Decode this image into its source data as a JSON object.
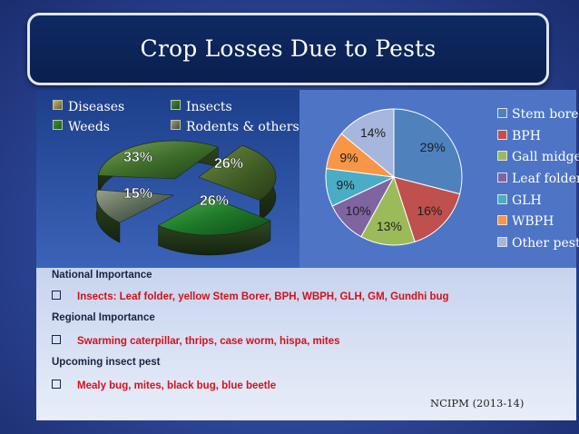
{
  "slide": {
    "title": "Crop Losses Due to Pests"
  },
  "left_legend": [
    {
      "label": "Diseases"
    },
    {
      "label": "Insects"
    },
    {
      "label": "Weeds"
    },
    {
      "label": "Rodents & others"
    }
  ],
  "chart_data": [
    {
      "type": "pie",
      "title": "",
      "style": "3d photo-textured pie",
      "slices": [
        {
          "label": "Diseases",
          "value": 26,
          "value_label": "26%"
        },
        {
          "label": "Insects",
          "value": 26,
          "value_label": "26%"
        },
        {
          "label": "Weeds",
          "value": 33,
          "value_label": "33%"
        },
        {
          "label": "Rodents & others",
          "value": 15,
          "value_label": "15%"
        }
      ],
      "legend_position": "top"
    },
    {
      "type": "pie",
      "title": "",
      "slices": [
        {
          "label": "Stem bore",
          "value": 29,
          "value_label": "29%",
          "color": "#4f81bd"
        },
        {
          "label": "BPH",
          "value": 16,
          "value_label": "16%",
          "color": "#c0504d"
        },
        {
          "label": "Gall midge",
          "value": 13,
          "value_label": "13%",
          "color": "#9bbb59"
        },
        {
          "label": "Leaf folder",
          "value": 10,
          "value_label": "10%",
          "color": "#8064a2"
        },
        {
          "label": "GLH",
          "value": 9,
          "value_label": "9%",
          "color": "#4bacc6"
        },
        {
          "label": "WBPH",
          "value": 9,
          "value_label": "9%",
          "color": "#f79646"
        },
        {
          "label": "Other pests",
          "value": 14,
          "value_label": "14%",
          "color": "#a6b6dc"
        }
      ],
      "legend_position": "right"
    }
  ],
  "notes": {
    "national_heading": "National Importance",
    "national_item": "Insects: Leaf folder, yellow Stem Borer,  BPH, WBPH, GLH, GM, Gundhi bug",
    "regional_heading": "Regional  Importance",
    "regional_item": "Swarming caterpillar, thrips, case worm, hispa, mites",
    "upcoming_heading": "Upcoming insect pest",
    "upcoming_item": "Mealy bug, mites, black bug, blue beetle",
    "source": "NCIPM (2013-14)"
  },
  "colors": {
    "accent_red": "#d4111b",
    "title_bg": "#0f2a63"
  }
}
